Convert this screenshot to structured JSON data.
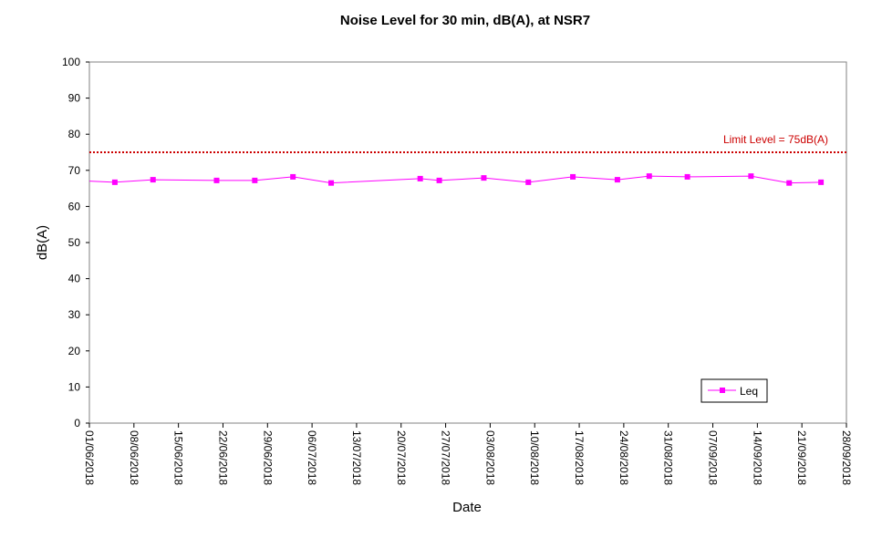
{
  "chart_data": {
    "type": "line",
    "title": "Noise Level for 30 min, dB(A), at NSR7",
    "xlabel": "Date",
    "ylabel": "dB(A)",
    "ylim": [
      0,
      100
    ],
    "yticks": [
      0,
      10,
      20,
      30,
      40,
      50,
      60,
      70,
      80,
      90,
      100
    ],
    "xlim": [
      "2018-06-01",
      "2018-09-28"
    ],
    "xtick_labels": [
      "01/06/2018",
      "08/06/2018",
      "15/06/2018",
      "22/06/2018",
      "29/06/2018",
      "06/07/2018",
      "13/07/2018",
      "20/07/2018",
      "27/07/2018",
      "03/08/2018",
      "10/08/2018",
      "17/08/2018",
      "24/08/2018",
      "31/08/2018",
      "07/09/2018",
      "14/09/2018",
      "21/09/2018",
      "28/09/2018"
    ],
    "grid": false,
    "legend_position": "bottom-right",
    "series": [
      {
        "name": "Leq",
        "color": "#ff00ff",
        "marker": "square",
        "line_start_value": 67.0,
        "x": [
          "2018-06-05",
          "2018-06-11",
          "2018-06-21",
          "2018-06-27",
          "2018-07-03",
          "2018-07-09",
          "2018-07-23",
          "2018-07-26",
          "2018-08-02",
          "2018-08-09",
          "2018-08-16",
          "2018-08-23",
          "2018-08-28",
          "2018-09-03",
          "2018-09-13",
          "2018-09-19",
          "2018-09-24"
        ],
        "y": [
          66.7,
          67.4,
          67.2,
          67.2,
          68.2,
          66.5,
          67.7,
          67.2,
          67.9,
          66.7,
          68.2,
          67.4,
          68.4,
          68.2,
          68.4,
          66.5,
          66.7
        ]
      }
    ],
    "limit_line": {
      "label": "Limit Level  = 75dB(A)",
      "value": 75,
      "color": "#cc0000"
    }
  }
}
